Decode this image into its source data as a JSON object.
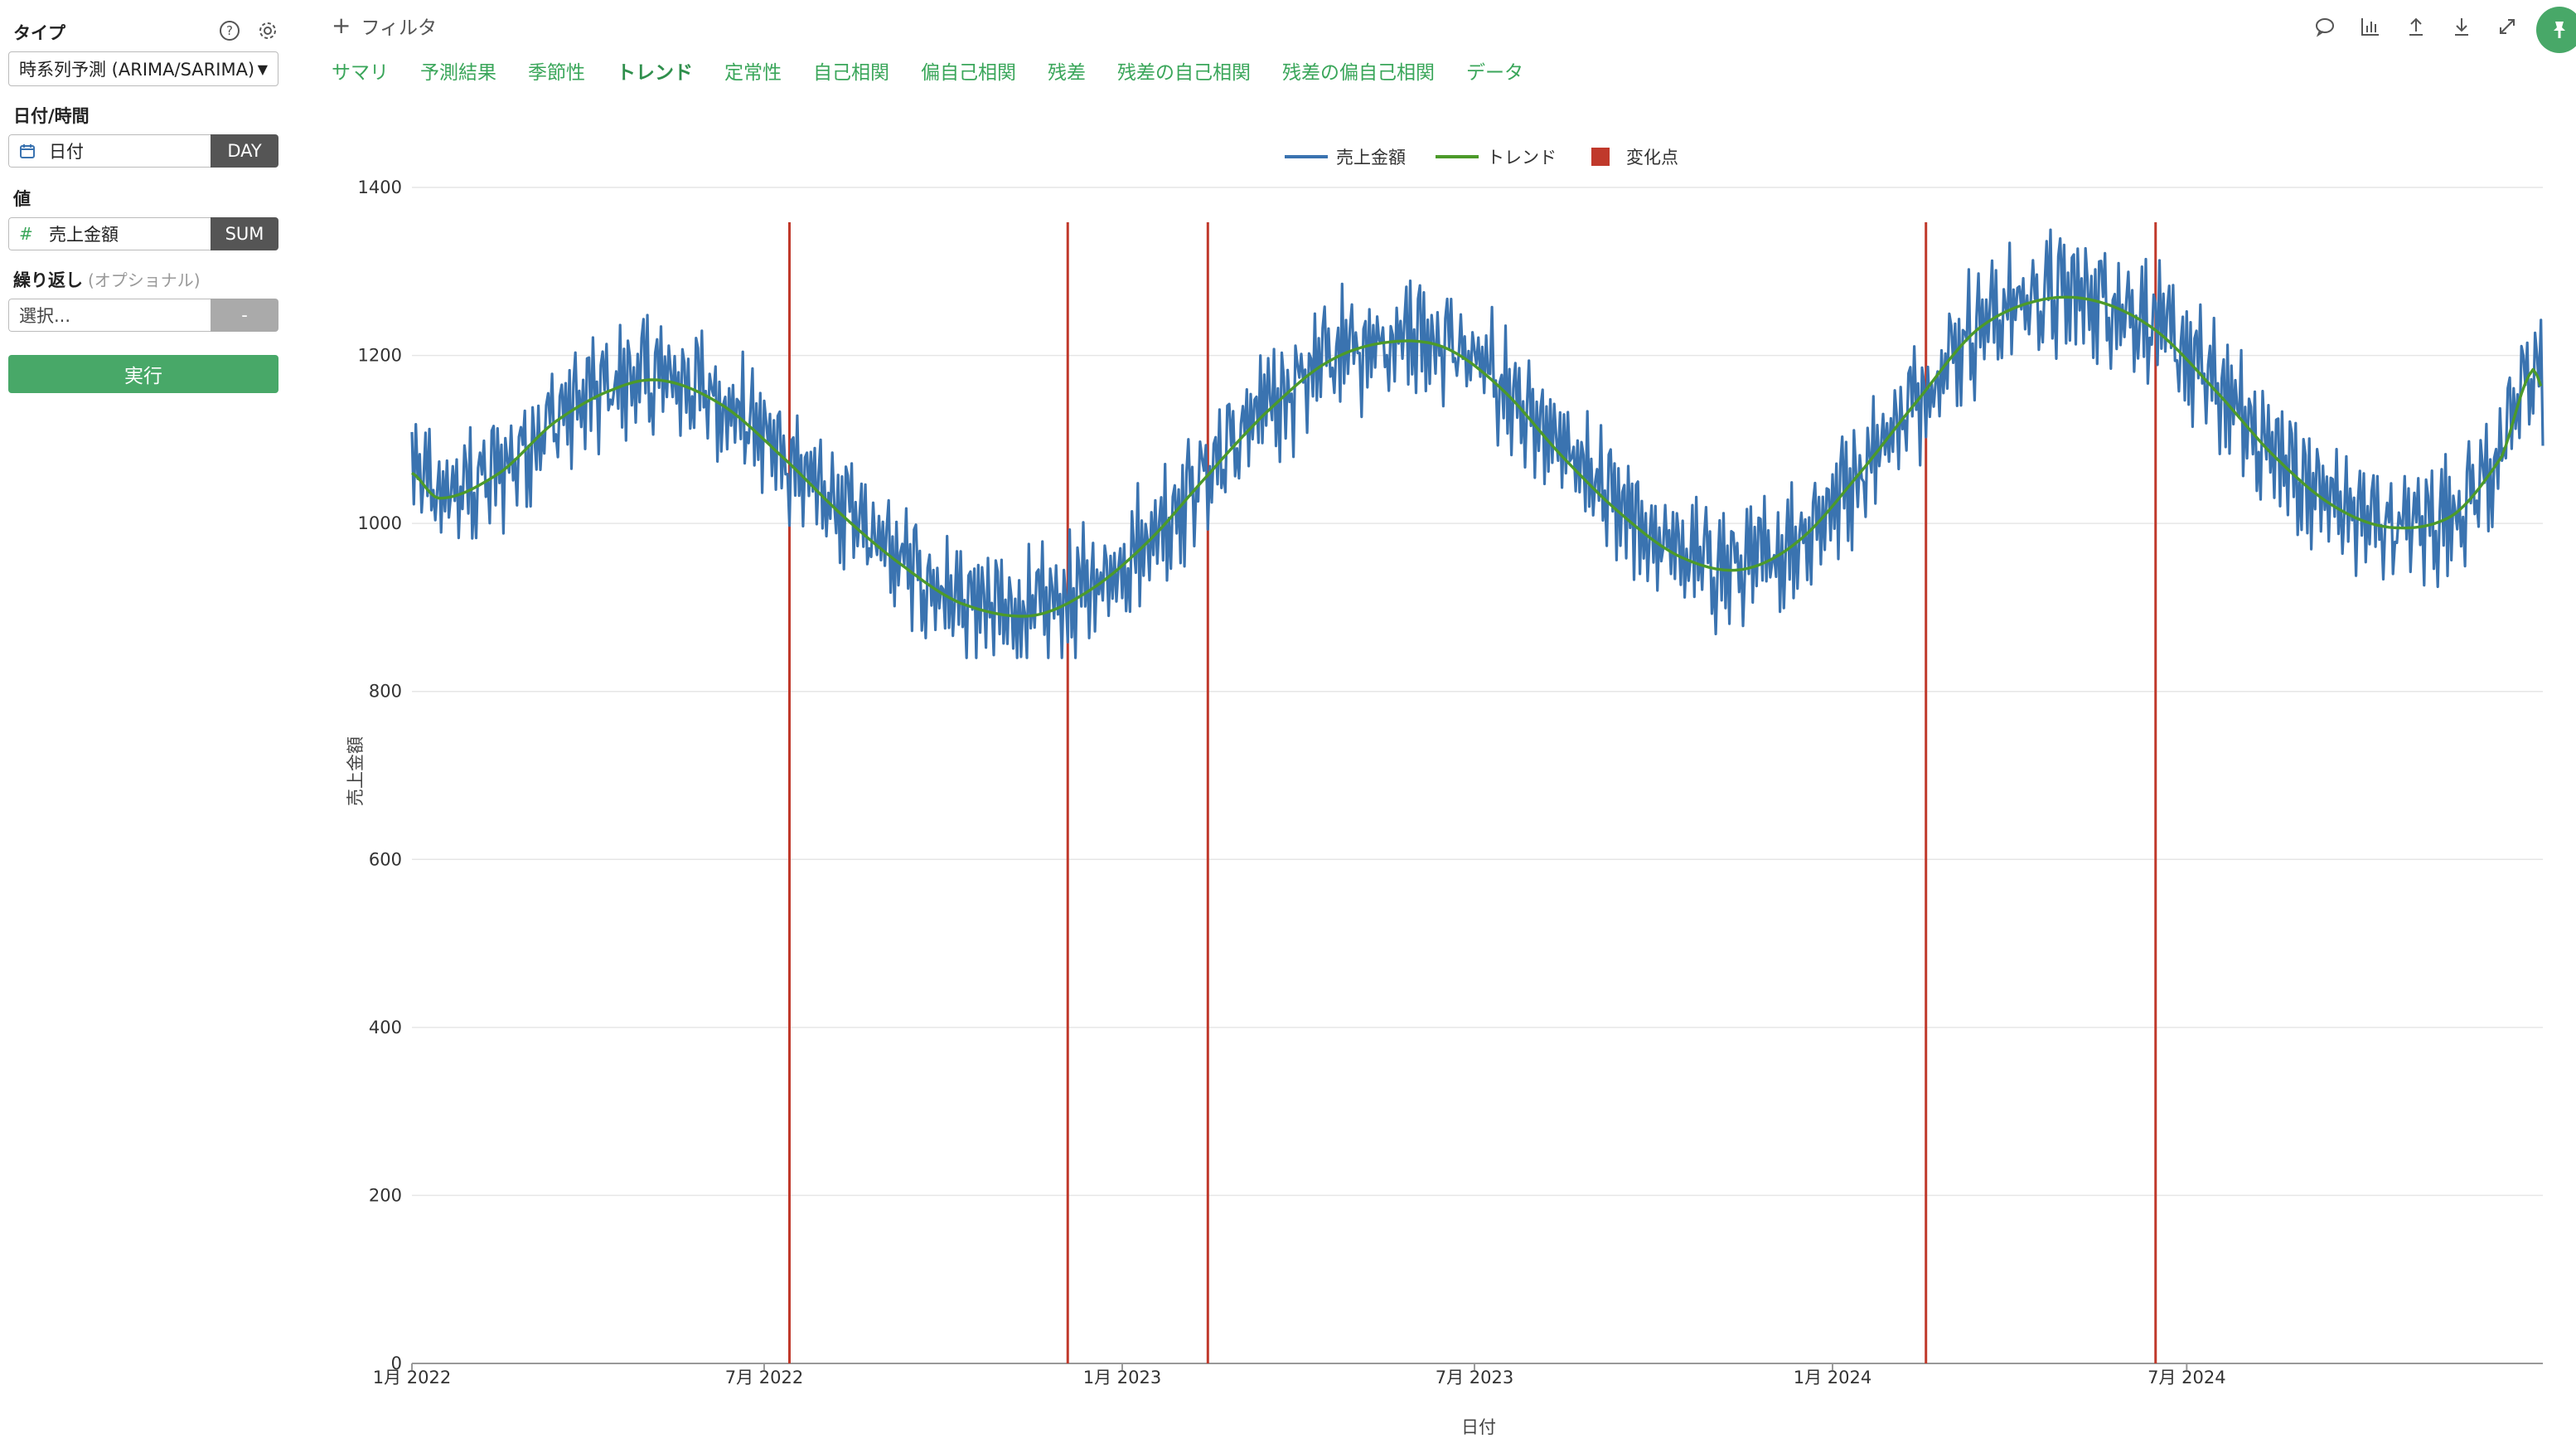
{
  "sidebar": {
    "type_label": "タイプ",
    "type_value": "時系列予測 (ARIMA/SARIMA)",
    "date_label": "日付/時間",
    "date_field": "日付",
    "date_agg": "DAY",
    "value_label": "値",
    "value_field": "売上金額",
    "value_agg": "SUM",
    "repeat_label": "繰り返し",
    "repeat_optional": "(オプショナル)",
    "repeat_placeholder": "選択...",
    "repeat_agg": "-",
    "run_label": "実行"
  },
  "header": {
    "filter_label": "フィルタ",
    "tabs": [
      {
        "label": "サマリ"
      },
      {
        "label": "予測結果"
      },
      {
        "label": "季節性"
      },
      {
        "label": "トレンド",
        "active": true
      },
      {
        "label": "定常性"
      },
      {
        "label": "自己相関"
      },
      {
        "label": "偏自己相関"
      },
      {
        "label": "残差"
      },
      {
        "label": "残差の自己相関"
      },
      {
        "label": "残差の偏自己相関"
      },
      {
        "label": "データ"
      }
    ],
    "toolbar_icons": [
      "comment-icon",
      "chart-icon",
      "upload-icon",
      "download-icon",
      "expand-icon",
      "pin-icon"
    ]
  },
  "colors": {
    "accent": "#48a868",
    "series_sales": "#3a73b0",
    "series_trend": "#4c9a2a",
    "changepoint": "#c0392b"
  },
  "chart_data": {
    "type": "line",
    "xlabel": "日付",
    "ylabel": "売上金額",
    "ylim": [
      0,
      1400
    ],
    "yticks": [
      0,
      200,
      400,
      600,
      800,
      1000,
      1200,
      1400
    ],
    "xlim": [
      "2022-01-01",
      "2024-12-31"
    ],
    "xticks": [
      {
        "date": "2022-01-01",
        "label": "1月 2022"
      },
      {
        "date": "2022-07-01",
        "label": "7月 2022"
      },
      {
        "date": "2023-01-01",
        "label": "1月 2023"
      },
      {
        "date": "2023-07-01",
        "label": "7月 2023"
      },
      {
        "date": "2024-01-01",
        "label": "1月 2024"
      },
      {
        "date": "2024-07-01",
        "label": "7月 2024"
      }
    ],
    "legend_position": "top-center",
    "grid": "horizontal",
    "series": [
      {
        "name": "売上金額",
        "kind": "daily-line",
        "x_start": "2022-01-01",
        "x_end": "2024-12-31",
        "approx_y_range": [
          840,
          1355
        ]
      },
      {
        "name": "トレンド",
        "kind": "smooth-line",
        "points": [
          {
            "x": "2022-01-01",
            "y": 1060
          },
          {
            "x": "2022-01-15",
            "y": 1030
          },
          {
            "x": "2022-02-15",
            "y": 1060
          },
          {
            "x": "2022-03-15",
            "y": 1120
          },
          {
            "x": "2022-04-15",
            "y": 1160
          },
          {
            "x": "2022-05-10",
            "y": 1170
          },
          {
            "x": "2022-06-10",
            "y": 1140
          },
          {
            "x": "2022-07-10",
            "y": 1080
          },
          {
            "x": "2022-08-10",
            "y": 1010
          },
          {
            "x": "2022-09-10",
            "y": 950
          },
          {
            "x": "2022-10-10",
            "y": 905
          },
          {
            "x": "2022-11-15",
            "y": 890
          },
          {
            "x": "2022-12-15",
            "y": 920
          },
          {
            "x": "2023-01-15",
            "y": 980
          },
          {
            "x": "2023-02-15",
            "y": 1060
          },
          {
            "x": "2023-03-15",
            "y": 1130
          },
          {
            "x": "2023-04-15",
            "y": 1190
          },
          {
            "x": "2023-05-15",
            "y": 1215
          },
          {
            "x": "2023-06-15",
            "y": 1210
          },
          {
            "x": "2023-07-15",
            "y": 1160
          },
          {
            "x": "2023-08-15",
            "y": 1080
          },
          {
            "x": "2023-09-15",
            "y": 1010
          },
          {
            "x": "2023-10-15",
            "y": 960
          },
          {
            "x": "2023-11-15",
            "y": 945
          },
          {
            "x": "2023-12-15",
            "y": 980
          },
          {
            "x": "2024-01-15",
            "y": 1060
          },
          {
            "x": "2024-02-15",
            "y": 1150
          },
          {
            "x": "2024-03-15",
            "y": 1230
          },
          {
            "x": "2024-04-15",
            "y": 1265
          },
          {
            "x": "2024-05-15",
            "y": 1265
          },
          {
            "x": "2024-06-15",
            "y": 1230
          },
          {
            "x": "2024-07-15",
            "y": 1160
          },
          {
            "x": "2024-08-15",
            "y": 1080
          },
          {
            "x": "2024-09-15",
            "y": 1020
          },
          {
            "x": "2024-10-15",
            "y": 995
          },
          {
            "x": "2024-11-15",
            "y": 1010
          },
          {
            "x": "2024-12-10",
            "y": 1080
          },
          {
            "x": "2024-12-25",
            "y": 1180
          },
          {
            "x": "2024-12-31",
            "y": 1160
          }
        ]
      },
      {
        "name": "変化点",
        "kind": "vertical-lines",
        "dates": [
          "2022-07-14",
          "2022-12-04",
          "2023-02-14",
          "2024-02-18",
          "2024-06-15"
        ]
      }
    ]
  }
}
